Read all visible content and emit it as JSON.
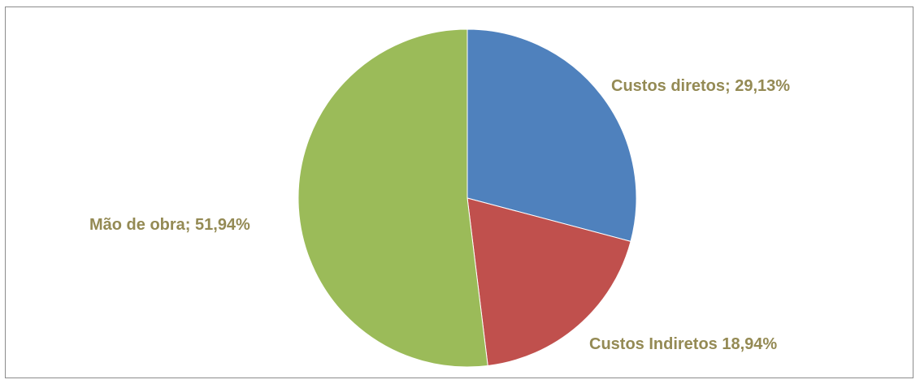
{
  "chart_data": {
    "type": "pie",
    "slices": [
      {
        "name": "Custos diretos",
        "value": 29.13,
        "color": "#4f81bd",
        "label": "Custos diretos; 29,13%"
      },
      {
        "name": "Custos Indiretos",
        "value": 18.94,
        "color": "#c0504d",
        "label": "Custos Indiretos 18,94%"
      },
      {
        "name": "Mão de obra",
        "value": 51.94,
        "color": "#9bbb59",
        "label": "Mão de obra; 51,94%"
      }
    ],
    "start_angle_deg": 0,
    "direction": "clockwise",
    "label_color": "#948a54"
  }
}
